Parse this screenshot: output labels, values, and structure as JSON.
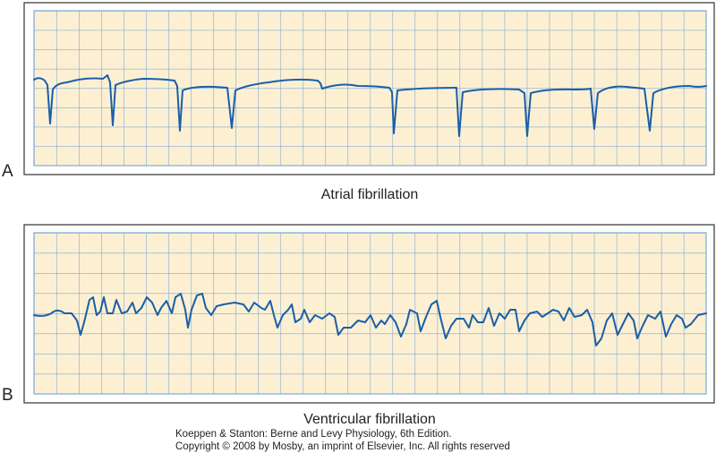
{
  "panels": [
    {
      "label": "A",
      "caption": "Atrial fibrillation"
    },
    {
      "label": "B",
      "caption": "Ventricular fibrillation"
    }
  ],
  "credit": {
    "line1": "Koeppen & Stanton: Berne and Levy Physiology, 6th Edition.",
    "line2": "Copyright © 2008 by Mosby, an imprint of Elsevier, Inc. All rights reserved"
  }
}
